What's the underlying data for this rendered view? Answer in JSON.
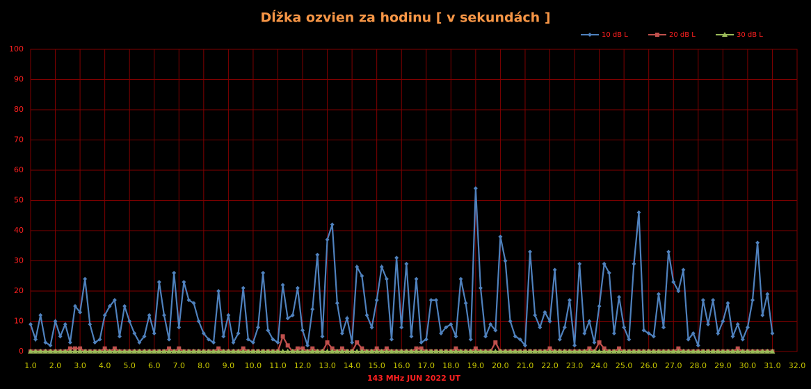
{
  "chart_data": {
    "type": "line",
    "title": "Dĺžka ozvien za hodinu [ v sekundách ]",
    "x_label": "143 MHz JUN  2022  UT",
    "x": [
      1,
      1.2,
      1.4,
      1.6,
      1.8,
      2,
      2.2,
      2.4,
      2.6,
      2.8,
      3,
      3.2,
      3.4,
      3.6,
      3.8,
      4,
      4.2,
      4.4,
      4.6,
      4.8,
      5,
      5.2,
      5.4,
      5.6,
      5.8,
      6,
      6.2,
      6.4,
      6.6,
      6.8,
      7,
      7.2,
      7.4,
      7.6,
      7.8,
      8,
      8.2,
      8.4,
      8.6,
      8.8,
      9,
      9.2,
      9.4,
      9.6,
      9.8,
      10,
      10.2,
      10.4,
      10.6,
      10.8,
      11,
      11.2,
      11.4,
      11.6,
      11.8,
      12,
      12.2,
      12.4,
      12.6,
      12.8,
      13,
      13.2,
      13.4,
      13.6,
      13.8,
      14,
      14.2,
      14.4,
      14.6,
      14.8,
      15,
      15.2,
      15.4,
      15.6,
      15.8,
      16,
      16.2,
      16.4,
      16.6,
      16.8,
      17,
      17.2,
      17.4,
      17.6,
      17.8,
      18,
      18.2,
      18.4,
      18.6,
      18.8,
      19,
      19.2,
      19.4,
      19.6,
      19.8,
      20,
      20.2,
      20.4,
      20.6,
      20.8,
      21,
      21.2,
      21.4,
      21.6,
      21.8,
      22,
      22.2,
      22.4,
      22.6,
      22.8,
      23,
      23.2,
      23.4,
      23.6,
      23.8,
      24,
      24.2,
      24.4,
      24.6,
      24.8,
      25,
      25.2,
      25.4,
      25.6,
      25.8,
      26,
      26.2,
      26.4,
      26.6,
      26.8,
      27,
      27.2,
      27.4,
      27.6,
      27.8,
      28,
      28.2,
      28.4,
      28.6,
      28.8,
      29,
      29.2,
      29.4,
      29.6,
      29.8,
      30,
      30.2,
      30.4,
      30.6,
      30.8,
      31
    ],
    "series": [
      {
        "name": "10 dB L",
        "color": "#4f81bd",
        "marker": "diamond",
        "values": [
          9,
          4,
          12,
          3,
          2,
          10,
          5,
          9,
          3,
          15,
          13,
          24,
          9,
          3,
          4,
          12,
          15,
          17,
          5,
          15,
          10,
          6,
          3,
          5,
          12,
          6,
          23,
          12,
          4,
          26,
          8,
          23,
          17,
          16,
          10,
          6,
          4,
          3,
          20,
          5,
          12,
          3,
          6,
          21,
          4,
          3,
          8,
          26,
          7,
          4,
          3,
          22,
          11,
          12,
          21,
          7,
          2,
          14,
          32,
          5,
          37,
          42,
          16,
          6,
          11,
          3,
          28,
          25,
          12,
          8,
          17,
          28,
          24,
          4,
          31,
          8,
          29,
          5,
          24,
          3,
          4,
          17,
          17,
          6,
          8,
          9,
          5,
          24,
          16,
          4,
          54,
          21,
          5,
          9,
          7,
          38,
          30,
          10,
          5,
          4,
          2,
          33,
          12,
          8,
          13,
          10,
          27,
          4,
          8,
          17,
          2,
          29,
          6,
          10,
          3,
          15,
          29,
          26,
          6,
          18,
          8,
          4,
          29,
          46,
          7,
          6,
          5,
          19,
          8,
          33,
          23,
          20,
          27,
          4,
          6,
          2,
          17,
          9,
          17,
          6,
          10,
          16,
          5,
          9,
          4,
          8,
          17,
          36,
          12,
          19,
          6
        ]
      },
      {
        "name": "20 dB L",
        "color": "#c0504d",
        "marker": "square",
        "values": [
          0,
          0,
          0,
          0,
          0,
          0,
          0,
          0,
          1,
          1,
          1,
          0,
          0,
          0,
          0,
          1,
          0,
          1,
          0,
          0,
          0,
          0,
          0,
          0,
          0,
          0,
          0,
          0,
          1,
          0,
          1,
          0,
          0,
          0,
          0,
          0,
          0,
          0,
          1,
          0,
          0,
          0,
          0,
          1,
          0,
          0,
          0,
          0,
          0,
          0,
          0,
          5,
          2,
          0,
          1,
          1,
          0,
          1,
          0,
          0,
          3,
          1,
          0,
          1,
          0,
          0,
          3,
          1,
          0,
          0,
          1,
          0,
          1,
          0,
          0,
          0,
          0,
          0,
          1,
          1,
          0,
          0,
          0,
          0,
          0,
          0,
          1,
          0,
          0,
          0,
          1,
          0,
          0,
          0,
          3,
          0,
          0,
          0,
          0,
          0,
          0,
          0,
          0,
          0,
          0,
          1,
          0,
          0,
          0,
          0,
          0,
          0,
          0,
          1,
          0,
          3,
          1,
          0,
          0,
          1,
          0,
          0,
          0,
          0,
          0,
          0,
          0,
          0,
          0,
          0,
          0,
          1,
          0,
          0,
          0,
          0,
          0,
          0,
          0,
          0,
          0,
          0,
          0,
          1,
          0,
          0,
          0,
          0,
          0,
          0,
          0
        ]
      },
      {
        "name": "30 dB L",
        "color": "#9bbb59",
        "marker": "triangle",
        "values": [
          0,
          0,
          0,
          0,
          0,
          0,
          0,
          0,
          0,
          0,
          0,
          0,
          0,
          0,
          0,
          0,
          0,
          0,
          0,
          0,
          0,
          0,
          0,
          0,
          0,
          0,
          0,
          0,
          0,
          0,
          0,
          0,
          0,
          0,
          0,
          0,
          0,
          0,
          0,
          0,
          0,
          0,
          0,
          0,
          0,
          0,
          0,
          0,
          0,
          0,
          0,
          0,
          0,
          0,
          0,
          0,
          0,
          0,
          0,
          0,
          0,
          0,
          0,
          0,
          0,
          0,
          0,
          0,
          0,
          0,
          0,
          0,
          0,
          0,
          0,
          0,
          0,
          0,
          0,
          0,
          0,
          0,
          0,
          0,
          0,
          0,
          0,
          0,
          0,
          0,
          0,
          0,
          0,
          0,
          0,
          0,
          0,
          0,
          0,
          0,
          0,
          0,
          0,
          0,
          0,
          0,
          0,
          0,
          0,
          0,
          0,
          0,
          0,
          0,
          0,
          0,
          0,
          0,
          0,
          0,
          0,
          0,
          0,
          0,
          0,
          0,
          0,
          0,
          0,
          0,
          0,
          0,
          0,
          0,
          0,
          0,
          0,
          0,
          0,
          0,
          0,
          0,
          0,
          0,
          0,
          0,
          0,
          0,
          0,
          0,
          0
        ]
      }
    ],
    "xlim": [
      1,
      32
    ],
    "xticks": [
      {
        "value": 1,
        "label": "1.0"
      },
      {
        "value": 2,
        "label": "2.0"
      },
      {
        "value": 3,
        "label": "3.0"
      },
      {
        "value": 4,
        "label": "4.0"
      },
      {
        "value": 5,
        "label": "5.0"
      },
      {
        "value": 6,
        "label": "6.0"
      },
      {
        "value": 7,
        "label": "7.0"
      },
      {
        "value": 8,
        "label": "8.0"
      },
      {
        "value": 9,
        "label": "9.0"
      },
      {
        "value": 10,
        "label": "10.0"
      },
      {
        "value": 11,
        "label": "11.0"
      },
      {
        "value": 12,
        "label": "12.0"
      },
      {
        "value": 13,
        "label": "13.0"
      },
      {
        "value": 14,
        "label": "14.0"
      },
      {
        "value": 15,
        "label": "15.0"
      },
      {
        "value": 16,
        "label": "16.0"
      },
      {
        "value": 17,
        "label": "17.0"
      },
      {
        "value": 18,
        "label": "18.0"
      },
      {
        "value": 19,
        "label": "19.0"
      },
      {
        "value": 20,
        "label": "20.0"
      },
      {
        "value": 21,
        "label": "21.0"
      },
      {
        "value": 22,
        "label": "22.0"
      },
      {
        "value": 23,
        "label": "23.0"
      },
      {
        "value": 24,
        "label": "24.0"
      },
      {
        "value": 25,
        "label": "25.0"
      },
      {
        "value": 26,
        "label": "26.0"
      },
      {
        "value": 27,
        "label": "27.0"
      },
      {
        "value": 28,
        "label": "28.0"
      },
      {
        "value": 29,
        "label": "29.0"
      },
      {
        "value": 30,
        "label": "30.0"
      },
      {
        "value": 31,
        "label": "31.0"
      },
      {
        "value": 32,
        "label": "32.0"
      }
    ],
    "ylim": [
      0,
      100
    ],
    "yticks": [
      0,
      10,
      20,
      30,
      40,
      50,
      60,
      70,
      80,
      90,
      100
    ],
    "grid": true,
    "legend": "top-right"
  }
}
